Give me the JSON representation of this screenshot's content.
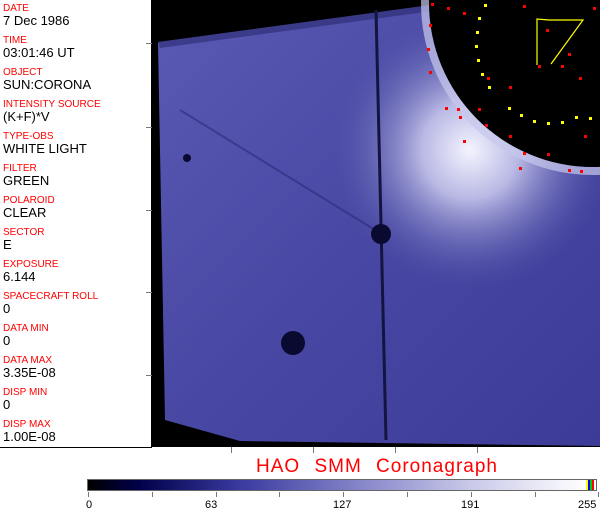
{
  "fields": [
    {
      "label": "DATE",
      "value": "7 Dec 1986"
    },
    {
      "label": "TIME",
      "value": "03:01:46 UT"
    },
    {
      "label": "OBJECT",
      "value": "SUN:CORONA"
    },
    {
      "label": "INTENSITY SOURCE",
      "value": "(K+F)*V"
    },
    {
      "label": "TYPE-OBS",
      "value": "WHITE LIGHT"
    },
    {
      "label": "FILTER",
      "value": "GREEN"
    },
    {
      "label": "POLAROID",
      "value": "CLEAR"
    },
    {
      "label": "SECTOR",
      "value": "E"
    },
    {
      "label": "EXPOSURE",
      "value": "6.144"
    },
    {
      "label": "SPACECRAFT ROLL",
      "value": "0"
    },
    {
      "label": "DATA MIN",
      "value": "0"
    },
    {
      "label": "DATA MAX",
      "value": "3.35E-08"
    },
    {
      "label": "DISP MIN",
      "value": "0"
    },
    {
      "label": "DISP MAX",
      "value": "1.00E-08"
    }
  ],
  "title": "HAO  SMM Coronagraph",
  "colorbar": {
    "ticks": [
      "0",
      "63",
      "127",
      "191",
      "255"
    ],
    "end_colors": [
      "#ffff00",
      "#0000ff",
      "#00c000",
      "#ff0000"
    ]
  },
  "colors": {
    "label": "#ff0000",
    "image_blue": "#3a3aa0",
    "marker_red": "#ff0000",
    "marker_yellow": "#ffff00"
  }
}
